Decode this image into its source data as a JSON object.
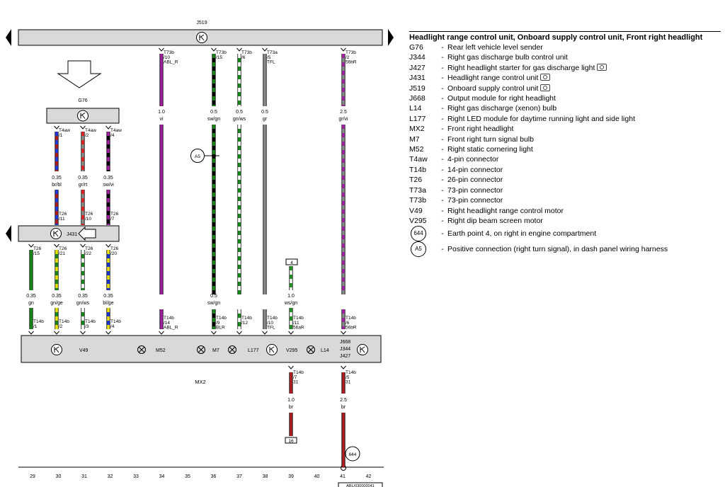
{
  "legend": {
    "title": "Headlight range control unit, Onboard supply control unit, Front right headlight",
    "items": [
      {
        "code": "G76",
        "desc": "Rear left vehicle level sender",
        "camera": false
      },
      {
        "code": "J344",
        "desc": "Right gas discharge bulb control unit",
        "camera": false
      },
      {
        "code": "J427",
        "desc": "Right headlight starter for gas discharge light",
        "camera": true
      },
      {
        "code": "J431",
        "desc": "Headlight range control unit",
        "camera": true
      },
      {
        "code": "J519",
        "desc": "Onboard supply control unit",
        "camera": true
      },
      {
        "code": "J668",
        "desc": "Output module for right headlight",
        "camera": false
      },
      {
        "code": "L14",
        "desc": "Right gas discharge (xenon) bulb",
        "camera": false
      },
      {
        "code": "L177",
        "desc": "Right LED module for daytime running light and side light",
        "camera": false
      },
      {
        "code": "MX2",
        "desc": "Front right headlight",
        "camera": false
      },
      {
        "code": "M7",
        "desc": "Front right turn signal bulb",
        "camera": false
      },
      {
        "code": "M52",
        "desc": "Right static cornering light",
        "camera": false
      },
      {
        "code": "T4aw",
        "desc": "4-pin connector",
        "camera": false
      },
      {
        "code": "T14b",
        "desc": "14-pin connector",
        "camera": false
      },
      {
        "code": "T26",
        "desc": "26-pin connector",
        "camera": false
      },
      {
        "code": "T73a",
        "desc": "73-pin connector",
        "camera": false
      },
      {
        "code": "T73b",
        "desc": "73-pin connector",
        "camera": false
      },
      {
        "code": "V49",
        "desc": "Right headlight range control motor",
        "camera": false
      },
      {
        "code": "V295",
        "desc": "Right dip beam screen motor",
        "camera": false
      }
    ],
    "symbols": [
      {
        "code": "644",
        "desc": "Earth point 4, on right in engine compartment"
      },
      {
        "code": "A5",
        "desc": "Positive connection (right turn signal), in dash panel wiring harness"
      }
    ]
  },
  "diagram": {
    "components": {
      "J519": "J519",
      "G76": "G76",
      "J431": "J431",
      "MX2": "MX2",
      "V49": "V49",
      "M52": "M52",
      "M7": "M7",
      "L177": "L177",
      "V295": "V295",
      "L14": "L14",
      "J668": "J668",
      "J344": "J344",
      "J427": "J427",
      "A5": "A5",
      "earth": "644",
      "fuse_top": "4",
      "fuse_bottom": "16",
      "ref": "ABL/030000041"
    },
    "g76_pins": [
      {
        "pin": "T4aw\n/1",
        "size": "0.35",
        "color": "br/bl"
      },
      {
        "pin": "T4aw\n/2",
        "size": "0.35",
        "color": "gr/rt"
      },
      {
        "pin": "T4aw\n/4",
        "size": "0.35",
        "color": "sw/vi"
      }
    ],
    "j431_in": [
      "T26\n/11",
      "T26\n/10",
      "T26\n/7"
    ],
    "j431_out": [
      {
        "pin": "T26\n/15",
        "size": "0.35",
        "color": "gn",
        "mx": "T14b\n/1"
      },
      {
        "pin": "T26\n/21",
        "size": "0.35",
        "color": "gn/ge",
        "mx": "T14b\n/2"
      },
      {
        "pin": "T26\n/22",
        "size": "0.35",
        "color": "gn/ws",
        "mx": "T14b\n/3"
      },
      {
        "pin": "T26\n/20",
        "size": "0.35",
        "color": "bl/ge",
        "mx": "T14b\n/4"
      }
    ],
    "j519_wires": [
      {
        "pin": "T73b\n/10\nABL_R",
        "size": "1.0",
        "color": "vi",
        "mx": "T14b\n/14\nABL_R"
      },
      {
        "pin": "T73b\n/15",
        "size": "0.5",
        "color": "sw/gn",
        "mx": "T14b\n/9\nBLR"
      },
      {
        "pin": "T73b\n/6",
        "size": "0.5",
        "color": "gn/ws",
        "mx": "T14b\n/12"
      },
      {
        "pin": "T73a\n/5\nTFL",
        "size": "0.5",
        "color": "gr",
        "mx": "T14b\n/10\nTFL"
      },
      {
        "pin": "T73b\n/2\n56bR",
        "size": "2.5",
        "color": "gr/vi",
        "mx": "T14b\n/6\n56bR"
      }
    ],
    "v295_wire": {
      "size": "1.0",
      "color": "ws/gn",
      "mx": "T14b\n/11\n56aR"
    },
    "ground_wires": [
      {
        "pin": "T14b\n/7\n31",
        "size": "1.0",
        "color": "br"
      },
      {
        "pin": "T14b\n/5\n31",
        "size": "2.5",
        "color": "br"
      }
    ],
    "columns": [
      "29",
      "30",
      "31",
      "32",
      "33",
      "34",
      "35",
      "36",
      "37",
      "38",
      "39",
      "40",
      "41",
      "42"
    ],
    "wire_colors": {
      "gn": "#1a8a1a",
      "bl": "#1a3ad8",
      "br": "#b02020",
      "rt": "#e02020",
      "gr": "#8a8a8a",
      "sw": "#000000",
      "vi": "#a020a0",
      "ge": "#f0e000",
      "ws": "#ffffff",
      "box": "#d9d9d9"
    }
  }
}
